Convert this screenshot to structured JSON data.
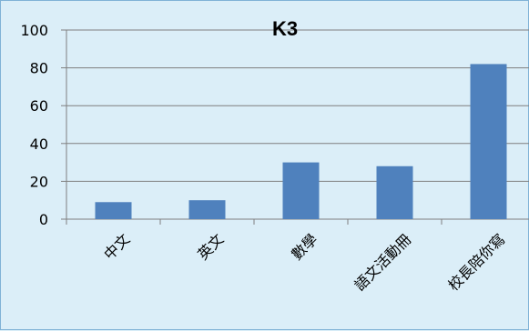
{
  "chart_data": {
    "type": "bar",
    "title": "K3",
    "categories": [
      "中文",
      "英文",
      "數學",
      "語文活動冊",
      "校長陪你寫"
    ],
    "values": [
      9,
      10,
      30,
      28,
      82
    ],
    "ylim": [
      0,
      100
    ],
    "yticks": [
      0,
      20,
      40,
      60,
      80,
      100
    ],
    "grid": true,
    "bar_color": "#4f81bd",
    "grid_color": "#7f7f7f",
    "background_color": "#dbeef8",
    "xlabel": "",
    "ylabel": ""
  }
}
